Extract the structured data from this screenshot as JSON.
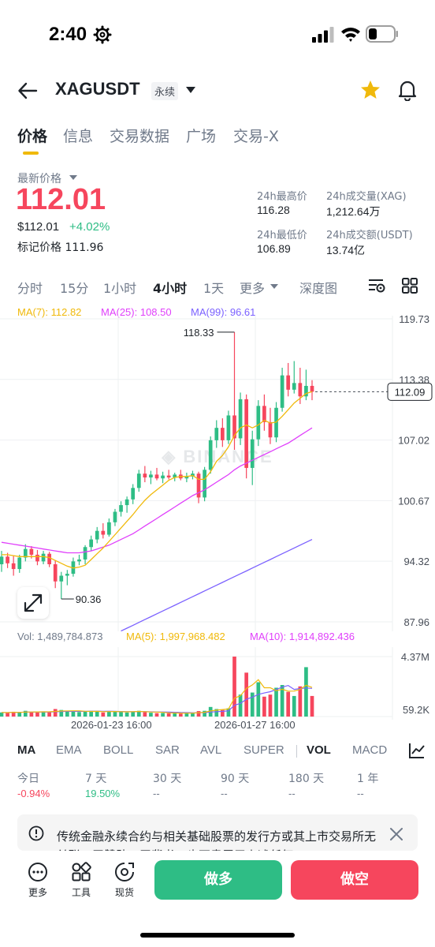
{
  "status_bar": {
    "time": "2:40"
  },
  "header": {
    "symbol": "XAGUSDT",
    "contract_type": "永续"
  },
  "tabs": [
    {
      "label": "价格",
      "active": true
    },
    {
      "label": "信息"
    },
    {
      "label": "交易数据"
    },
    {
      "label": "广场"
    },
    {
      "label": "交易-X"
    }
  ],
  "price": {
    "label": "最新价格",
    "last": "112.01",
    "usd": "$112.01",
    "change": "+4.02%",
    "mark": "标记价格 111.96"
  },
  "stats": {
    "high_label": "24h最高价",
    "high": "116.28",
    "low_label": "24h最低价",
    "low": "106.89",
    "vol_label": "24h成交量(XAG)",
    "vol": "1,212.64万",
    "amount_label": "24h成交额(USDT)",
    "amount": "13.74亿"
  },
  "intervals": [
    "分时",
    "15分",
    "1小时",
    "4小时",
    "1天",
    "更多",
    "深度图"
  ],
  "active_interval": "4小时",
  "ma_legend": {
    "ma7": "MA(7): 112.82",
    "ma25": "MA(25): 108.50",
    "ma99": "MA(99): 96.61"
  },
  "vol_legend": {
    "vol": "Vol: 1,489,784.873",
    "ma5": "MA(5): 1,997,968.482",
    "ma10": "MA(10): 1,914,892.436"
  },
  "indicator_tabs": [
    "MA",
    "EMA",
    "BOLL",
    "SAR",
    "AVL",
    "SUPER",
    "VOL",
    "MACD"
  ],
  "performance": [
    {
      "label": "今日",
      "value": "-0.94%"
    },
    {
      "label": "7 天",
      "value": "19.50%"
    },
    {
      "label": "30 天",
      "value": "--"
    },
    {
      "label": "90 天",
      "value": "--"
    },
    {
      "label": "180 天",
      "value": "--"
    },
    {
      "label": "1 年",
      "value": "--"
    }
  ],
  "notice": {
    "text": "传统金融永续合约与相关基础股票的发行方或其上市交易所无关联、无赞助、无背书，也不隶属于上述任何"
  },
  "bottom_bar": {
    "more": "更多",
    "tools": "工具",
    "spot": "现货",
    "long": "做多",
    "short": "做空"
  },
  "colors": {
    "up": "#2ebd85",
    "down": "#f6465d",
    "ma7": "#f0b90b",
    "ma25": "#e040fb",
    "ma99": "#7b61ff",
    "accent": "#f0b90b"
  },
  "chart_data": {
    "type": "candlestick",
    "y_axis_ticks": [
      "119.73",
      "113.38",
      "107.02",
      "100.67",
      "94.32",
      "87.96"
    ],
    "ylim": [
      87.96,
      119.73
    ],
    "current_price": "112.09",
    "max_label": "118.33",
    "min_label": "90.36",
    "x_axis_labels": [
      "2026-01-23 16:00",
      "2026-01-27 16:00"
    ],
    "watermark": "BINANCE",
    "volume_ticks": [
      "4.37M",
      "59.2K"
    ],
    "candles": [
      [
        94.0,
        95.4,
        93.2,
        94.8
      ],
      [
        94.8,
        95.2,
        93.6,
        94.1
      ],
      [
        94.1,
        94.9,
        92.8,
        93.5
      ],
      [
        93.5,
        95.0,
        93.1,
        94.7
      ],
      [
        94.7,
        96.1,
        94.3,
        95.6
      ],
      [
        95.6,
        95.9,
        94.6,
        95.0
      ],
      [
        95.0,
        95.5,
        93.9,
        94.3
      ],
      [
        94.3,
        95.4,
        94.0,
        95.1
      ],
      [
        95.1,
        95.3,
        93.7,
        94.0
      ],
      [
        94.0,
        94.4,
        91.5,
        92.2
      ],
      [
        92.2,
        93.2,
        90.36,
        92.8
      ],
      [
        92.8,
        93.4,
        91.8,
        93.0
      ],
      [
        93.0,
        94.7,
        92.7,
        94.3
      ],
      [
        94.3,
        95.0,
        93.9,
        94.5
      ],
      [
        94.5,
        96.0,
        94.0,
        95.8
      ],
      [
        95.8,
        97.0,
        95.4,
        96.6
      ],
      [
        96.6,
        97.9,
        96.2,
        97.5
      ],
      [
        97.5,
        98.3,
        96.7,
        97.1
      ],
      [
        97.1,
        98.8,
        96.9,
        98.4
      ],
      [
        98.4,
        99.8,
        98.0,
        99.5
      ],
      [
        99.5,
        100.6,
        99.0,
        100.2
      ],
      [
        100.2,
        101.1,
        99.4,
        100.8
      ],
      [
        100.8,
        102.4,
        100.3,
        102.0
      ],
      [
        102.0,
        103.9,
        101.6,
        103.5
      ],
      [
        103.5,
        104.3,
        102.6,
        103.1
      ],
      [
        103.1,
        103.8,
        102.4,
        103.4
      ],
      [
        103.4,
        104.1,
        102.8,
        103.0
      ],
      [
        103.0,
        103.7,
        102.5,
        103.3
      ],
      [
        103.3,
        103.9,
        102.9,
        103.1
      ],
      [
        103.1,
        103.6,
        102.7,
        103.4
      ],
      [
        103.4,
        103.9,
        102.8,
        103.0
      ],
      [
        103.0,
        103.6,
        102.6,
        103.2
      ],
      [
        103.2,
        103.8,
        102.9,
        103.5
      ],
      [
        103.5,
        103.7,
        100.4,
        101.0
      ],
      [
        101.0,
        104.2,
        100.6,
        103.9
      ],
      [
        103.9,
        107.4,
        103.5,
        107.0
      ],
      [
        107.0,
        109.1,
        106.2,
        108.3
      ],
      [
        108.3,
        109.3,
        106.3,
        107.0
      ],
      [
        107.0,
        110.1,
        106.6,
        109.6
      ],
      [
        109.6,
        118.33,
        106.0,
        107.2
      ],
      [
        107.2,
        112.0,
        106.5,
        111.3
      ],
      [
        111.3,
        111.8,
        103.0,
        104.1
      ],
      [
        104.1,
        108.0,
        102.3,
        107.1
      ],
      [
        107.1,
        111.2,
        106.4,
        110.6
      ],
      [
        110.6,
        111.8,
        108.0,
        108.9
      ],
      [
        108.9,
        110.4,
        106.6,
        107.3
      ],
      [
        107.3,
        111.0,
        106.8,
        110.4
      ],
      [
        110.4,
        114.6,
        110.0,
        113.8
      ],
      [
        113.8,
        115.1,
        111.6,
        112.3
      ],
      [
        112.3,
        115.3,
        111.9,
        113.0
      ],
      [
        113.0,
        114.6,
        110.8,
        111.6
      ],
      [
        111.6,
        114.4,
        111.2,
        112.7
      ],
      [
        112.7,
        113.3,
        111.2,
        112.09
      ]
    ],
    "ma7": [
      95.0,
      95.0,
      94.9,
      94.8,
      94.8,
      94.8,
      94.8,
      94.8,
      94.7,
      94.4,
      94.1,
      93.8,
      93.6,
      93.7,
      93.9,
      94.5,
      95.1,
      95.7,
      96.4,
      97.1,
      97.8,
      98.5,
      99.2,
      100.0,
      100.7,
      101.3,
      101.8,
      102.3,
      102.8,
      103.1,
      103.2,
      103.2,
      103.3,
      102.9,
      102.9,
      103.7,
      104.8,
      105.4,
      106.3,
      107.5,
      108.3,
      108.6,
      108.3,
      108.6,
      109.1,
      108.8,
      108.9,
      109.5,
      110.2,
      110.9,
      111.4,
      111.9,
      112.1
    ],
    "ma25": [
      96.3,
      96.2,
      96.1,
      96.0,
      95.9,
      95.8,
      95.7,
      95.6,
      95.5,
      95.4,
      95.3,
      95.2,
      95.2,
      95.2,
      95.3,
      95.4,
      95.6,
      95.8,
      96.0,
      96.3,
      96.6,
      96.9,
      97.2,
      97.6,
      98.0,
      98.4,
      98.8,
      99.2,
      99.6,
      100.0,
      100.4,
      100.8,
      101.2,
      101.5,
      101.8,
      102.2,
      102.6,
      103.0,
      103.4,
      103.9,
      104.3,
      104.6,
      104.9,
      105.2,
      105.5,
      105.8,
      106.1,
      106.4,
      106.7,
      107.1,
      107.5,
      107.9,
      108.3
    ],
    "ma99": [
      87.0,
      87.0,
      87.0,
      87.0,
      87.0,
      87.0,
      87.0,
      87.0,
      87.0,
      87.0,
      87.0,
      87.0,
      87.0,
      87.0,
      87.0,
      87.0,
      87.0,
      87.0,
      87.0,
      87.0,
      87.0,
      87.3,
      87.6,
      87.9,
      88.2,
      88.5,
      88.8,
      89.1,
      89.4,
      89.7,
      90.0,
      90.3,
      90.6,
      90.9,
      91.2,
      91.5,
      91.8,
      92.1,
      92.4,
      92.7,
      93.0,
      93.3,
      93.6,
      93.9,
      94.2,
      94.5,
      94.8,
      95.1,
      95.4,
      95.7,
      96.0,
      96.3,
      96.6
    ],
    "volume": [
      0.3,
      0.28,
      0.35,
      0.3,
      0.42,
      0.33,
      0.3,
      0.38,
      0.31,
      0.55,
      0.48,
      0.35,
      0.4,
      0.33,
      0.38,
      0.42,
      0.36,
      0.3,
      0.35,
      0.4,
      0.38,
      0.3,
      0.36,
      0.42,
      0.32,
      0.28,
      0.25,
      0.26,
      0.24,
      0.27,
      0.22,
      0.25,
      0.26,
      0.4,
      0.42,
      0.7,
      0.55,
      0.48,
      0.6,
      4.37,
      1.6,
      3.2,
      1.75,
      2.5,
      1.45,
      1.6,
      2.1,
      2.3,
      1.8,
      1.5,
      2.2,
      3.6,
      1.5
    ]
  }
}
